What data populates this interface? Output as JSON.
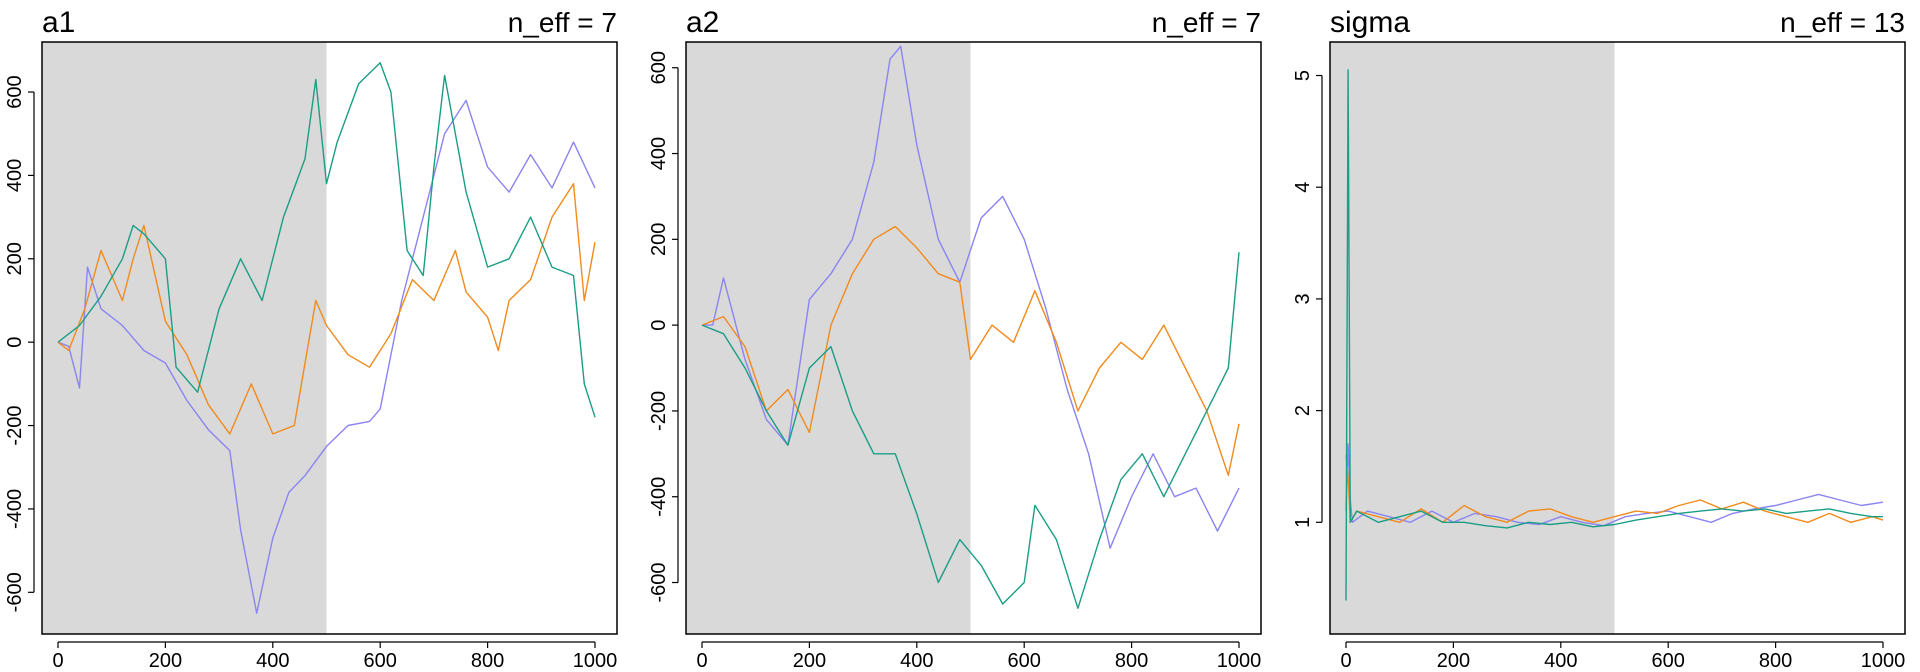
{
  "chart_data": [
    {
      "type": "line",
      "title": "a1",
      "annotation": "n_eff = 7",
      "xlim": [
        0,
        1000
      ],
      "ylim": [
        -700,
        720
      ],
      "xticks": [
        0,
        200,
        400,
        600,
        800,
        1000
      ],
      "yticks": [
        -600,
        -400,
        -200,
        0,
        200,
        400,
        600
      ],
      "warmup_end": 500,
      "series": [
        {
          "color": "#8B84F2",
          "points": [
            [
              0,
              0
            ],
            [
              20,
              -10
            ],
            [
              40,
              -110
            ],
            [
              55,
              180
            ],
            [
              80,
              80
            ],
            [
              120,
              40
            ],
            [
              160,
              -20
            ],
            [
              200,
              -50
            ],
            [
              240,
              -140
            ],
            [
              280,
              -210
            ],
            [
              320,
              -260
            ],
            [
              340,
              -450
            ],
            [
              370,
              -650
            ],
            [
              400,
              -470
            ],
            [
              430,
              -360
            ],
            [
              460,
              -320
            ],
            [
              500,
              -250
            ],
            [
              540,
              -200
            ],
            [
              580,
              -190
            ],
            [
              600,
              -160
            ],
            [
              640,
              100
            ],
            [
              680,
              300
            ],
            [
              720,
              500
            ],
            [
              760,
              580
            ],
            [
              800,
              420
            ],
            [
              840,
              360
            ],
            [
              880,
              450
            ],
            [
              920,
              370
            ],
            [
              960,
              480
            ],
            [
              1000,
              370
            ]
          ]
        },
        {
          "color": "#F28A1C",
          "points": [
            [
              0,
              0
            ],
            [
              20,
              -20
            ],
            [
              50,
              80
            ],
            [
              80,
              220
            ],
            [
              120,
              100
            ],
            [
              140,
              200
            ],
            [
              160,
              280
            ],
            [
              200,
              50
            ],
            [
              240,
              -30
            ],
            [
              280,
              -150
            ],
            [
              320,
              -220
            ],
            [
              360,
              -100
            ],
            [
              400,
              -220
            ],
            [
              440,
              -200
            ],
            [
              480,
              100
            ],
            [
              500,
              40
            ],
            [
              540,
              -30
            ],
            [
              580,
              -60
            ],
            [
              620,
              20
            ],
            [
              660,
              150
            ],
            [
              700,
              100
            ],
            [
              740,
              220
            ],
            [
              760,
              120
            ],
            [
              800,
              60
            ],
            [
              820,
              -20
            ],
            [
              840,
              100
            ],
            [
              880,
              150
            ],
            [
              920,
              300
            ],
            [
              960,
              380
            ],
            [
              980,
              100
            ],
            [
              1000,
              240
            ]
          ]
        },
        {
          "color": "#1A9E84",
          "points": [
            [
              0,
              0
            ],
            [
              40,
              40
            ],
            [
              80,
              110
            ],
            [
              120,
              200
            ],
            [
              140,
              280
            ],
            [
              160,
              260
            ],
            [
              200,
              200
            ],
            [
              220,
              -60
            ],
            [
              260,
              -120
            ],
            [
              300,
              80
            ],
            [
              340,
              200
            ],
            [
              380,
              100
            ],
            [
              420,
              300
            ],
            [
              460,
              440
            ],
            [
              480,
              630
            ],
            [
              500,
              380
            ],
            [
              520,
              480
            ],
            [
              560,
              620
            ],
            [
              600,
              670
            ],
            [
              620,
              600
            ],
            [
              650,
              220
            ],
            [
              680,
              160
            ],
            [
              700,
              420
            ],
            [
              720,
              640
            ],
            [
              760,
              360
            ],
            [
              800,
              180
            ],
            [
              840,
              200
            ],
            [
              880,
              300
            ],
            [
              920,
              180
            ],
            [
              960,
              160
            ],
            [
              980,
              -100
            ],
            [
              1000,
              -180
            ]
          ]
        }
      ]
    },
    {
      "type": "line",
      "title": "a2",
      "annotation": "n_eff = 7",
      "xlim": [
        0,
        1000
      ],
      "ylim": [
        -720,
        660
      ],
      "xticks": [
        0,
        200,
        400,
        600,
        800,
        1000
      ],
      "yticks": [
        -600,
        -400,
        -200,
        0,
        200,
        400,
        600
      ],
      "warmup_end": 500,
      "series": [
        {
          "color": "#8B84F2",
          "points": [
            [
              0,
              0
            ],
            [
              20,
              0
            ],
            [
              40,
              110
            ],
            [
              80,
              -80
            ],
            [
              120,
              -220
            ],
            [
              160,
              -280
            ],
            [
              200,
              60
            ],
            [
              240,
              120
            ],
            [
              280,
              200
            ],
            [
              320,
              380
            ],
            [
              350,
              620
            ],
            [
              370,
              650
            ],
            [
              400,
              420
            ],
            [
              440,
              200
            ],
            [
              480,
              100
            ],
            [
              520,
              250
            ],
            [
              560,
              300
            ],
            [
              600,
              200
            ],
            [
              640,
              40
            ],
            [
              680,
              -150
            ],
            [
              720,
              -300
            ],
            [
              760,
              -520
            ],
            [
              800,
              -400
            ],
            [
              840,
              -300
            ],
            [
              880,
              -400
            ],
            [
              920,
              -380
            ],
            [
              960,
              -480
            ],
            [
              1000,
              -380
            ]
          ]
        },
        {
          "color": "#F28A1C",
          "points": [
            [
              0,
              0
            ],
            [
              40,
              20
            ],
            [
              80,
              -50
            ],
            [
              120,
              -200
            ],
            [
              160,
              -150
            ],
            [
              200,
              -250
            ],
            [
              240,
              0
            ],
            [
              280,
              120
            ],
            [
              320,
              200
            ],
            [
              360,
              230
            ],
            [
              400,
              180
            ],
            [
              440,
              120
            ],
            [
              480,
              100
            ],
            [
              500,
              -80
            ],
            [
              540,
              0
            ],
            [
              580,
              -40
            ],
            [
              620,
              80
            ],
            [
              660,
              -40
            ],
            [
              700,
              -200
            ],
            [
              740,
              -100
            ],
            [
              780,
              -40
            ],
            [
              820,
              -80
            ],
            [
              860,
              0
            ],
            [
              900,
              -100
            ],
            [
              940,
              -200
            ],
            [
              980,
              -350
            ],
            [
              1000,
              -230
            ]
          ]
        },
        {
          "color": "#1A9E84",
          "points": [
            [
              0,
              0
            ],
            [
              40,
              -20
            ],
            [
              80,
              -100
            ],
            [
              120,
              -200
            ],
            [
              160,
              -280
            ],
            [
              200,
              -100
            ],
            [
              240,
              -50
            ],
            [
              280,
              -200
            ],
            [
              320,
              -300
            ],
            [
              360,
              -300
            ],
            [
              400,
              -440
            ],
            [
              440,
              -600
            ],
            [
              480,
              -500
            ],
            [
              520,
              -560
            ],
            [
              560,
              -650
            ],
            [
              600,
              -600
            ],
            [
              620,
              -420
            ],
            [
              660,
              -500
            ],
            [
              700,
              -660
            ],
            [
              740,
              -500
            ],
            [
              780,
              -360
            ],
            [
              820,
              -300
            ],
            [
              860,
              -400
            ],
            [
              900,
              -300
            ],
            [
              940,
              -200
            ],
            [
              980,
              -100
            ],
            [
              1000,
              170
            ]
          ]
        }
      ]
    },
    {
      "type": "line",
      "title": "sigma",
      "annotation": "n_eff = 13",
      "xlim": [
        0,
        1000
      ],
      "ylim": [
        0,
        5.3
      ],
      "xticks": [
        0,
        200,
        400,
        600,
        800,
        1000
      ],
      "yticks": [
        1,
        2,
        3,
        4,
        5
      ],
      "warmup_end": 500,
      "series": [
        {
          "color": "#8B84F2",
          "points": [
            [
              0,
              1.1
            ],
            [
              4,
              1.7
            ],
            [
              8,
              1.2
            ],
            [
              12,
              1.0
            ],
            [
              40,
              1.1
            ],
            [
              80,
              1.05
            ],
            [
              120,
              1.0
            ],
            [
              160,
              1.1
            ],
            [
              200,
              1.0
            ],
            [
              240,
              1.08
            ],
            [
              280,
              1.05
            ],
            [
              320,
              1.0
            ],
            [
              360,
              0.98
            ],
            [
              400,
              1.05
            ],
            [
              440,
              1.0
            ],
            [
              480,
              0.97
            ],
            [
              520,
              1.05
            ],
            [
              560,
              1.08
            ],
            [
              600,
              1.1
            ],
            [
              640,
              1.05
            ],
            [
              680,
              1.0
            ],
            [
              720,
              1.08
            ],
            [
              760,
              1.12
            ],
            [
              800,
              1.15
            ],
            [
              840,
              1.2
            ],
            [
              880,
              1.25
            ],
            [
              920,
              1.2
            ],
            [
              960,
              1.15
            ],
            [
              1000,
              1.18
            ]
          ]
        },
        {
          "color": "#F28A1C",
          "points": [
            [
              0,
              1.6
            ],
            [
              4,
              1.4
            ],
            [
              8,
              1.0
            ],
            [
              20,
              1.1
            ],
            [
              60,
              1.05
            ],
            [
              100,
              1.0
            ],
            [
              140,
              1.12
            ],
            [
              180,
              1.0
            ],
            [
              220,
              1.15
            ],
            [
              260,
              1.05
            ],
            [
              300,
              1.0
            ],
            [
              340,
              1.1
            ],
            [
              380,
              1.12
            ],
            [
              420,
              1.05
            ],
            [
              460,
              1.0
            ],
            [
              500,
              1.05
            ],
            [
              540,
              1.1
            ],
            [
              580,
              1.08
            ],
            [
              620,
              1.15
            ],
            [
              660,
              1.2
            ],
            [
              700,
              1.12
            ],
            [
              740,
              1.18
            ],
            [
              780,
              1.1
            ],
            [
              820,
              1.05
            ],
            [
              860,
              1.0
            ],
            [
              900,
              1.08
            ],
            [
              940,
              1.0
            ],
            [
              980,
              1.05
            ],
            [
              1000,
              1.02
            ]
          ]
        },
        {
          "color": "#1A9E84",
          "points": [
            [
              0,
              0.3
            ],
            [
              4,
              5.05
            ],
            [
              8,
              1.0
            ],
            [
              20,
              1.1
            ],
            [
              60,
              1.0
            ],
            [
              100,
              1.05
            ],
            [
              140,
              1.1
            ],
            [
              180,
              1.0
            ],
            [
              220,
              1.0
            ],
            [
              260,
              0.97
            ],
            [
              300,
              0.95
            ],
            [
              340,
              1.0
            ],
            [
              380,
              0.98
            ],
            [
              420,
              1.0
            ],
            [
              460,
              0.96
            ],
            [
              500,
              0.98
            ],
            [
              540,
              1.02
            ],
            [
              580,
              1.05
            ],
            [
              620,
              1.08
            ],
            [
              660,
              1.1
            ],
            [
              700,
              1.12
            ],
            [
              740,
              1.1
            ],
            [
              780,
              1.12
            ],
            [
              820,
              1.08
            ],
            [
              860,
              1.1
            ],
            [
              900,
              1.12
            ],
            [
              940,
              1.08
            ],
            [
              980,
              1.05
            ],
            [
              1000,
              1.05
            ]
          ]
        }
      ]
    }
  ]
}
